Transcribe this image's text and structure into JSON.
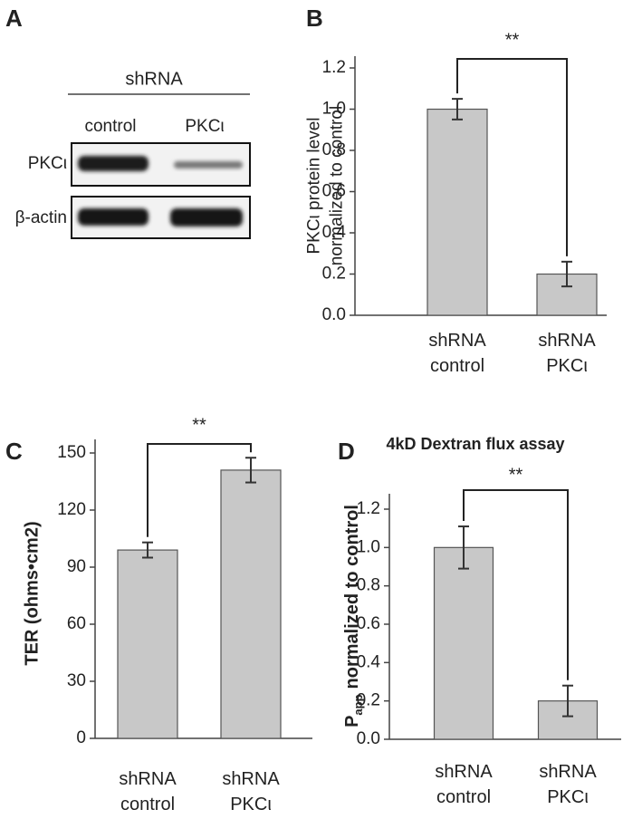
{
  "blot": {
    "panel": "A",
    "header": "shRNA",
    "columns": [
      "control",
      "PKCι"
    ],
    "rows": [
      "PKCι",
      "β-actin"
    ]
  },
  "chart_data": [
    {
      "type": "bar",
      "panel": "B",
      "y_label": [
        "PKCι protein level",
        "normalized to control"
      ],
      "categories": [
        "shRNA control",
        "shRNA PKCι"
      ],
      "values": [
        1.0,
        0.2
      ],
      "errors": [
        0.05,
        0.06
      ],
      "color": "#c8c8c8",
      "significance": "**",
      "ylim": [
        0,
        1.2
      ],
      "yticks": [
        {
          "value": 0,
          "label": "0.0"
        },
        {
          "value": 0.2,
          "label": "0.2"
        },
        {
          "value": 0.4,
          "label": "0.4"
        },
        {
          "value": 0.6,
          "label": "0.6"
        },
        {
          "value": 0.8,
          "label": "0.8"
        },
        {
          "value": 1.0,
          "label": "1.0"
        },
        {
          "value": 1.2,
          "label": "1.2"
        }
      ]
    },
    {
      "type": "bar",
      "panel": "C",
      "y_label": "TER (ohms•cm2)",
      "categories": [
        "shRNA control",
        "shRNA PKCι"
      ],
      "values": [
        99,
        141
      ],
      "errors": [
        4,
        6.5
      ],
      "color": "#c8c8c8",
      "significance": "**",
      "ylim": [
        0,
        150
      ],
      "yticks": [
        0,
        30,
        60,
        90,
        120,
        150
      ]
    },
    {
      "type": "bar",
      "panel": "D",
      "title": "4kD Dextran flux assay",
      "y_label": {
        "base": "P",
        "subscript": "app",
        "text": "normalized to control"
      },
      "categories": [
        "shRNA control",
        "shRNA PKCι"
      ],
      "values": [
        1.0,
        0.2
      ],
      "errors": [
        0.11,
        0.08
      ],
      "color": "#c8c8c8",
      "significance": "**",
      "ylim": [
        0,
        1.2
      ],
      "yticks": [
        {
          "value": 0,
          "label": "0.0"
        },
        {
          "value": 0.2,
          "label": "0.2"
        },
        {
          "value": 0.4,
          "label": "0.4"
        },
        {
          "value": 0.6,
          "label": "0.6"
        },
        {
          "value": 0.8,
          "label": "0.8"
        },
        {
          "value": 1.0,
          "label": "1.0"
        },
        {
          "value": 1.2,
          "label": "1.2"
        }
      ]
    }
  ]
}
